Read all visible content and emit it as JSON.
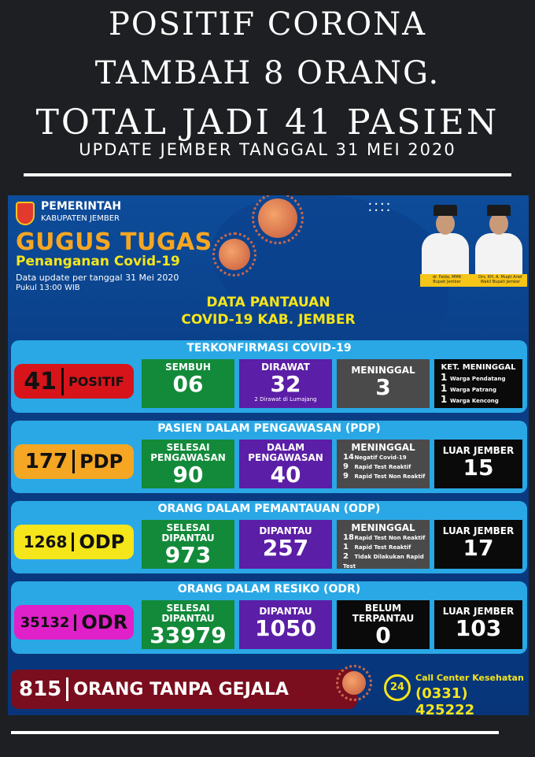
{
  "headline": {
    "line1": "POSITIF CORONA",
    "line2": "TAMBAH 8 ORANG.",
    "line3": "TOTAL JADI 41 PASIEN",
    "subline": "UPDATE JEMBER  TANGGAL 31 MEI 2020"
  },
  "poster": {
    "pemerintah": "PEMERINTAH",
    "kabupaten": "KABUPATEN JEMBER",
    "gugus": "GUGUS TUGAS",
    "penanganan": "Penanganan Covid-19",
    "data_update": "Data update per tanggal 31 Mei 2020",
    "pukul": "Pukul 13:00 WIB",
    "officials": [
      {
        "label": "dr. Faida, MMR",
        "role": "Bupati Jember"
      },
      {
        "label": "Drs. KH. A. Muqit Arief",
        "role": "Wakil Bupati Jember"
      }
    ],
    "title_line1": "DATA PANTAUAN",
    "title_line2": "COVID-19 KAB. JEMBER"
  },
  "panels": {
    "terkonfirmasi": {
      "title": "TERKONFIRMASI COVID-19",
      "pill_num": "41",
      "pill_label": "POSITIF",
      "sembuh_label": "SEMBUH",
      "sembuh_value": "06",
      "dirawat_label": "DIRAWAT",
      "dirawat_value": "32",
      "dirawat_note": "2 Dirawat di Lumajang",
      "meninggal_label": "MENINGGAL",
      "meninggal_value": "3",
      "ket_label": "KET. MENINGGAL",
      "ket_items": [
        {
          "n": "1",
          "text": "Warga Pendatang"
        },
        {
          "n": "1",
          "text": "Warga Patrang"
        },
        {
          "n": "1",
          "text": "Warga Kencong"
        }
      ]
    },
    "pdp": {
      "title": "PASIEN DALAM PENGAWASAN (PDP)",
      "pill_num": "177",
      "pill_label": "PDP",
      "selesai_label": "SELESAI PENGAWASAN",
      "selesai_value": "90",
      "dalam_label": "DALAM PENGAWASAN",
      "dalam_value": "40",
      "meninggal_label": "MENINGGAL",
      "meninggal_items": [
        {
          "n": "14",
          "text": "Negatif Covid-19"
        },
        {
          "n": "9",
          "text": "Rapid Test Reaktif"
        },
        {
          "n": "9",
          "text": "Rapid Test Non Reaktif"
        }
      ],
      "luar_label": "LUAR JEMBER",
      "luar_value": "15"
    },
    "odp": {
      "title": "ORANG DALAM PEMANTAUAN (ODP)",
      "pill_num": "1268",
      "pill_label": "ODP",
      "selesai_label": "SELESAI DIPANTAU",
      "selesai_value": "973",
      "dipantau_label": "DIPANTAU",
      "dipantau_value": "257",
      "meninggal_label": "MENINGGAL",
      "meninggal_items": [
        {
          "n": "18",
          "text": "Rapid Test Non Reaktif"
        },
        {
          "n": "1",
          "text": "Rapid Test Reaktif"
        },
        {
          "n": "2",
          "text": "Tidak Dilakukan Rapid Test"
        }
      ],
      "luar_label": "LUAR JEMBER",
      "luar_value": "17"
    },
    "odr": {
      "title": "ORANG DALAM RESIKO (ODR)",
      "pill_num": "35132",
      "pill_label": "ODR",
      "selesai_label": "SELESAI DIPANTAU",
      "selesai_value": "33979",
      "dipantau_label": "DIPANTAU",
      "dipantau_value": "1050",
      "belum_label": "BELUM TERPANTAU",
      "belum_value": "0",
      "luar_label": "LUAR JEMBER",
      "luar_value": "103"
    }
  },
  "footer": {
    "otg_num": "815",
    "otg_label": "ORANG TANPA GEJALA",
    "call_icon_text": "24",
    "call_label": "Call Center Kesehatan",
    "call_number": "(0331) 425222"
  },
  "colors": {
    "background": "#1e1f22",
    "poster_blue": "#0d4c9a",
    "panel_blue": "#2aa8e6",
    "positif_red": "#d7141a",
    "pdp_orange": "#f5a623",
    "odp_yellow": "#f5e51b",
    "odr_magenta": "#e020c8",
    "otg_maroon": "#7a0e1e"
  }
}
